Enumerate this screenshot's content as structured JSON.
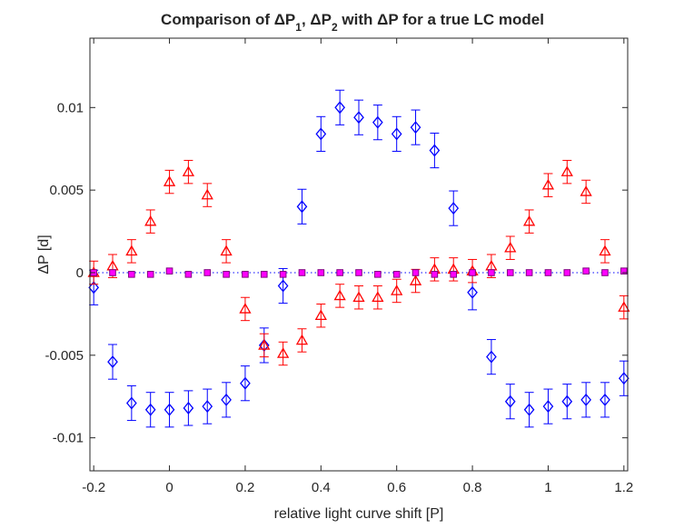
{
  "chart_data": {
    "type": "scatter",
    "title": {
      "parts": [
        {
          "text": "Comparison of ΔP"
        },
        {
          "text": "1",
          "sub": true
        },
        {
          "text": ", ΔP"
        },
        {
          "text": "2",
          "sub": true
        },
        {
          "text": " with ΔP for a true LC model"
        }
      ]
    },
    "xlabel": "relative light curve shift [P]",
    "ylabel": "ΔP [d]",
    "xlim": [
      -0.21,
      1.21
    ],
    "ylim": [
      -0.012,
      0.0142
    ],
    "xticks": [
      {
        "value": -0.2,
        "label": "-0.2"
      },
      {
        "value": 0,
        "label": "0"
      },
      {
        "value": 0.2,
        "label": "0.2"
      },
      {
        "value": 0.4,
        "label": "0.4"
      },
      {
        "value": 0.6,
        "label": "0.6"
      },
      {
        "value": 0.8,
        "label": "0.8"
      },
      {
        "value": 1,
        "label": "1"
      },
      {
        "value": 1.2,
        "label": "1.2"
      }
    ],
    "yticks": [
      {
        "value": -0.01,
        "label": "-0.01"
      },
      {
        "value": -0.005,
        "label": "-0.005"
      },
      {
        "value": 0,
        "label": "0"
      },
      {
        "value": 0.005,
        "label": "0.005"
      },
      {
        "value": 0.01,
        "label": "0.01"
      }
    ],
    "x": [
      -0.2,
      -0.15,
      -0.1,
      -0.05,
      0,
      0.05,
      0.1,
      0.15,
      0.2,
      0.25,
      0.3,
      0.35,
      0.4,
      0.45,
      0.5,
      0.55,
      0.6,
      0.65,
      0.7,
      0.75,
      0.8,
      0.85,
      0.9,
      0.95,
      1.0,
      1.05,
      1.1,
      1.15,
      1.2
    ],
    "zero_line": {
      "color": "#0000ff",
      "style": "dotted"
    },
    "series": [
      {
        "name": "ΔP1",
        "marker": "diamond",
        "color": "#0000ff",
        "error": 0.00105,
        "values": [
          -0.0009,
          -0.0054,
          -0.0079,
          -0.0083,
          -0.0083,
          -0.0082,
          -0.0081,
          -0.0077,
          -0.0067,
          -0.0044,
          -0.0008,
          0.004,
          0.0084,
          0.01,
          0.0094,
          0.0091,
          0.0084,
          0.0088,
          0.0074,
          0.0039,
          -0.0012,
          -0.0051,
          -0.0078,
          -0.0083,
          -0.0081,
          -0.0078,
          -0.0077,
          -0.0077,
          -0.0064
        ]
      },
      {
        "name": "ΔP2",
        "marker": "triangle",
        "color": "#ff0000",
        "error": 0.0007,
        "values": [
          0.0,
          0.0004,
          0.0013,
          0.0031,
          0.0055,
          0.0061,
          0.0047,
          0.0013,
          -0.0022,
          -0.0044,
          -0.0049,
          -0.0041,
          -0.0026,
          -0.0014,
          -0.0015,
          -0.0015,
          -0.0011,
          -0.0005,
          0.0002,
          0.0002,
          0.0001,
          0.0004,
          0.0015,
          0.0031,
          0.0053,
          0.0061,
          0.0049,
          0.0013,
          -0.0021
        ]
      },
      {
        "name": "ΔP",
        "marker": "square",
        "color": "#ff00ff",
        "edgecolor": "#800080",
        "error": 0.0,
        "values": [
          0.0,
          0.0,
          -0.0001,
          -0.0001,
          0.0001,
          -0.0001,
          0.0,
          -0.0001,
          -0.0001,
          -0.0001,
          -0.0001,
          0.0,
          0.0,
          0.0,
          0.0,
          -0.0001,
          -0.0001,
          0.0,
          -0.0001,
          -0.0001,
          0.0,
          0.0,
          0.0,
          0.0,
          0.0,
          0.0,
          0.0001,
          0.0,
          0.0001
        ]
      }
    ]
  }
}
